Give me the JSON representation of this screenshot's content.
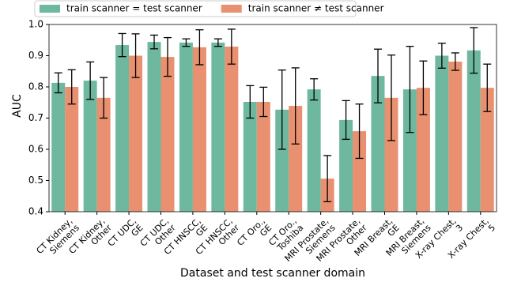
{
  "chart_data": {
    "type": "bar",
    "xlabel": "Dataset and test scanner domain",
    "ylabel": "AUC",
    "categories": [
      "CT Kidney,\nSiemens",
      "CT Kidney,\nOther",
      "CT UDC,\nGE",
      "CT UDC,\nOther",
      "CT HNSCC,\nGE",
      "CT HNSCC,\nOther",
      "CT Oro.,\nGE",
      "CT Oro.,\nToshiba",
      "MRI Prostate,\nSiemens",
      "MRI Prostate,\nOther",
      "MRI Breast,\nGE",
      "MRI Breast,\nSiemens",
      "X-ray Chest,\n3",
      "X-ray Chest,\n5"
    ],
    "series": [
      {
        "name": "train scanner = test scanner",
        "color": "#6db89e",
        "values": [
          0.813,
          0.82,
          0.934,
          0.944,
          0.942,
          0.942,
          0.752,
          0.727,
          0.792,
          0.694,
          0.835,
          0.792,
          0.9,
          0.917
        ],
        "errors": [
          0.032,
          0.06,
          0.037,
          0.022,
          0.012,
          0.012,
          0.052,
          0.127,
          0.034,
          0.062,
          0.086,
          0.138,
          0.04,
          0.073
        ]
      },
      {
        "name": "train scanner ≠ test scanner",
        "color": "#e8906f",
        "values": [
          0.8,
          0.765,
          0.9,
          0.896,
          0.927,
          0.929,
          0.752,
          0.739,
          0.506,
          0.658,
          0.765,
          0.797,
          0.881,
          0.797
        ],
        "errors": [
          0.055,
          0.065,
          0.07,
          0.062,
          0.056,
          0.056,
          0.047,
          0.122,
          0.074,
          0.087,
          0.137,
          0.086,
          0.028,
          0.076
        ]
      }
    ],
    "ylim": [
      0.4,
      1.0
    ],
    "yticks": [
      0.4,
      0.5,
      0.6,
      0.7,
      0.8,
      0.9,
      {
        "value": 1.0,
        "label": "1.0"
      }
    ],
    "grid": false,
    "legend": "upper left"
  }
}
